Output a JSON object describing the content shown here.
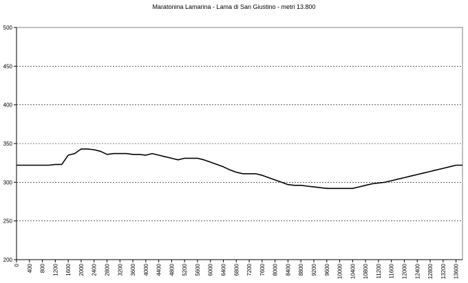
{
  "chart_data": {
    "type": "line",
    "title": "Maratonina Lamarina - Lama di San Giustino - metri 13.800",
    "xlabel": "",
    "ylabel": "",
    "ylim": [
      200,
      500
    ],
    "yticks": [
      500,
      450,
      400,
      350,
      300,
      250,
      200
    ],
    "xticks": [
      "0",
      "400",
      "800",
      "1200",
      "1600",
      "2000",
      "2400",
      "2800",
      "3200",
      "3600",
      "4000",
      "4400",
      "4800",
      "5200",
      "5600",
      "6000",
      "6400",
      "6800",
      "7200",
      "7600",
      "8000",
      "8400",
      "8800",
      "9200",
      "9600",
      "10000",
      "10400",
      "10800",
      "11200",
      "11600",
      "12000",
      "12400",
      "12800",
      "13200",
      "13600"
    ],
    "grid": true,
    "series": [
      {
        "values": [
          [
            0,
            322
          ],
          [
            200,
            322
          ],
          [
            400,
            322
          ],
          [
            600,
            322
          ],
          [
            800,
            322
          ],
          [
            1000,
            322
          ],
          [
            1200,
            323
          ],
          [
            1400,
            323
          ],
          [
            1600,
            335
          ],
          [
            1800,
            337
          ],
          [
            2000,
            343
          ],
          [
            2200,
            343
          ],
          [
            2400,
            342
          ],
          [
            2600,
            340
          ],
          [
            2800,
            336
          ],
          [
            3000,
            337
          ],
          [
            3200,
            337
          ],
          [
            3400,
            337
          ],
          [
            3600,
            336
          ],
          [
            3800,
            336
          ],
          [
            4000,
            335
          ],
          [
            4200,
            337
          ],
          [
            4400,
            335
          ],
          [
            4600,
            333
          ],
          [
            4800,
            331
          ],
          [
            5000,
            329
          ],
          [
            5200,
            331
          ],
          [
            5400,
            331
          ],
          [
            5600,
            331
          ],
          [
            5800,
            329
          ],
          [
            6000,
            326
          ],
          [
            6200,
            323
          ],
          [
            6400,
            320
          ],
          [
            6600,
            316
          ],
          [
            6800,
            313
          ],
          [
            7000,
            311
          ],
          [
            7200,
            311
          ],
          [
            7400,
            311
          ],
          [
            7600,
            309
          ],
          [
            7800,
            306
          ],
          [
            8000,
            303
          ],
          [
            8200,
            300
          ],
          [
            8400,
            297
          ],
          [
            8600,
            296
          ],
          [
            8800,
            296
          ],
          [
            9000,
            295
          ],
          [
            9200,
            294
          ],
          [
            9400,
            293
          ],
          [
            9600,
            292
          ],
          [
            9800,
            292
          ],
          [
            10000,
            292
          ],
          [
            10200,
            292
          ],
          [
            10400,
            292
          ],
          [
            10600,
            294
          ],
          [
            10800,
            296
          ],
          [
            11000,
            298
          ],
          [
            11200,
            299
          ],
          [
            11400,
            300
          ],
          [
            11600,
            302
          ],
          [
            11800,
            304
          ],
          [
            12000,
            306
          ],
          [
            12200,
            308
          ],
          [
            12400,
            310
          ],
          [
            12600,
            312
          ],
          [
            12800,
            314
          ],
          [
            13000,
            316
          ],
          [
            13200,
            318
          ],
          [
            13400,
            320
          ],
          [
            13600,
            322
          ],
          [
            13800,
            322
          ]
        ]
      }
    ]
  }
}
